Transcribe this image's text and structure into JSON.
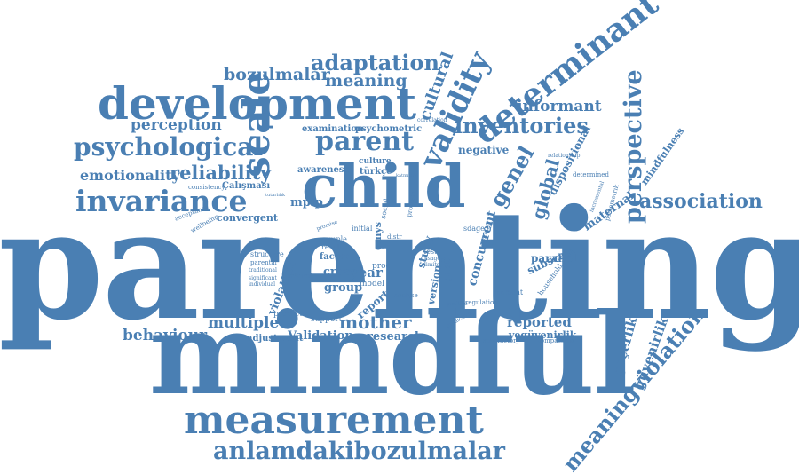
{
  "color": "#4a7fb3",
  "words": {
    "parenting": "parenting",
    "mindful": "mindful",
    "measurement": "measurement",
    "anlamdakibozulmalar": "anlamdakibozulmalar",
    "development": "development",
    "psychological": "psychological",
    "invariance": "invariance",
    "child": "child",
    "scale": "scale",
    "parent": "parent",
    "validity": "validity",
    "determinant": "determinant",
    "inventories": "inventories",
    "perspective": "perspective",
    "association": "association",
    "adaptation": "adaptation",
    "bozulmalar": "bozulmalar",
    "meaning": "meaning",
    "perception": "perception",
    "emotionality": "emotionality",
    "reliability": "reliability",
    "cultural": "cultural",
    "informant": "informant",
    "genel": "genel",
    "global": "global",
    "dispositional": "dispositional",
    "mindfulness": "mindfulness",
    "maternal": "maternal",
    "behaviour": "behaviour",
    "multiple": "multiple",
    "mother": "mother",
    "reported": "reported",
    "validation": "Validation",
    "research": "research",
    "adjustment": "adjustment",
    "group": "group",
    "cross": "cross",
    "year": "year",
    "report": "report",
    "violation": "violation",
    "meaningviolation": "meaningviolation",
    "gecerlik": "geçerlik",
    "guvenirlik": "güvenirlik",
    "veguvenirlik": "vegüvenirlik",
    "mpip": "mpip",
    "convergent": "convergent",
    "examination": "examination",
    "psychometric": "psychometric",
    "negative": "negative",
    "awareness": "awareness",
    "culture": "culture",
    "turkce": "türkçe",
    "calismasi": "Çalışması",
    "consistency": "consistency",
    "concurrent": "concurrent",
    "subscale": "subscale",
    "parallel": "parallel",
    "household": "household",
    "support": "support",
    "predictor": "predictor",
    "structure": "structure",
    "factor": "factor",
    "sample": "sample",
    "result": "result",
    "initial": "initial",
    "gmys": "gmys",
    "proc": "proc",
    "model": "model",
    "study": "study",
    "version": "version",
    "gabo": "gabÖ",
    "social": "social",
    "problem": "problem",
    "sdage": "sdage",
    "test": "test",
    "moment": "moment",
    "regulation": "regulation",
    "satisfactory": "satisfactory",
    "compassion": "compassion",
    "acceptance": "acceptance",
    "wellbeing": "wellbeing",
    "determined": "determined",
    "relationship": "relationship",
    "incremental": "incremental",
    "psikometrik": "psikometrik",
    "correlation": "correlation",
    "interest": "interest",
    "analyse": "analyse",
    "parental": "parental",
    "traditional": "traditional",
    "significant": "significant",
    "individual": "individual",
    "positive": "positive",
    "predictive": "predictive",
    "stressful": "stressful",
    "promise": "promise",
    "kattmiyan": "katmıyan",
    "tutarlilik": "tutarlılık",
    "distr": "distr",
    "usage": "usage",
    "limits": "limits"
  }
}
